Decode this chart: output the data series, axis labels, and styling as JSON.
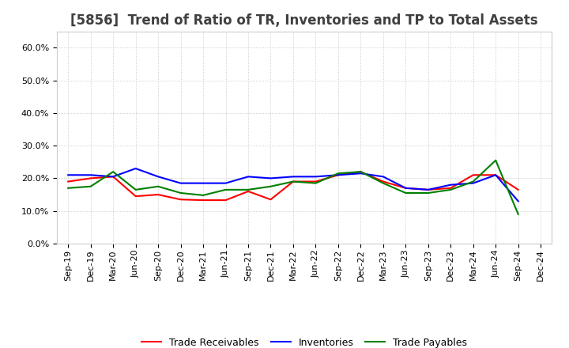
{
  "title": "[5856]  Trend of Ratio of TR, Inventories and TP to Total Assets",
  "x_labels": [
    "Sep-19",
    "Dec-19",
    "Mar-20",
    "Jun-20",
    "Sep-20",
    "Dec-20",
    "Mar-21",
    "Jun-21",
    "Sep-21",
    "Dec-21",
    "Mar-22",
    "Jun-22",
    "Sep-22",
    "Dec-22",
    "Mar-23",
    "Jun-23",
    "Sep-23",
    "Dec-23",
    "Mar-24",
    "Jun-24",
    "Sep-24",
    "Dec-24"
  ],
  "trade_receivables": [
    0.19,
    0.2,
    0.205,
    0.145,
    0.15,
    0.135,
    0.133,
    0.133,
    0.16,
    0.135,
    0.19,
    0.19,
    0.21,
    0.22,
    0.19,
    0.17,
    0.165,
    0.17,
    0.21,
    0.21,
    0.165,
    null
  ],
  "inventories": [
    0.21,
    0.21,
    0.205,
    0.23,
    0.205,
    0.185,
    0.185,
    0.185,
    0.205,
    0.2,
    0.205,
    0.205,
    0.21,
    0.215,
    0.205,
    0.17,
    0.165,
    0.18,
    0.185,
    0.21,
    0.13,
    null
  ],
  "trade_payables": [
    0.17,
    0.175,
    0.22,
    0.165,
    0.175,
    0.155,
    0.148,
    0.165,
    0.165,
    0.175,
    0.19,
    0.185,
    0.215,
    0.22,
    0.185,
    0.155,
    0.155,
    0.165,
    0.19,
    0.255,
    0.09,
    null
  ],
  "ylim": [
    0.0,
    0.65
  ],
  "yticks": [
    0.0,
    0.1,
    0.2,
    0.3,
    0.4,
    0.5,
    0.6
  ],
  "tr_color": "#ff0000",
  "inv_color": "#0000ff",
  "tp_color": "#008000",
  "legend_labels": [
    "Trade Receivables",
    "Inventories",
    "Trade Payables"
  ],
  "bg_color": "#ffffff",
  "grid_color": "#c0c0c0",
  "title_color": "#404040",
  "title_fontsize": 12,
  "tick_fontsize": 8,
  "line_width": 1.5
}
